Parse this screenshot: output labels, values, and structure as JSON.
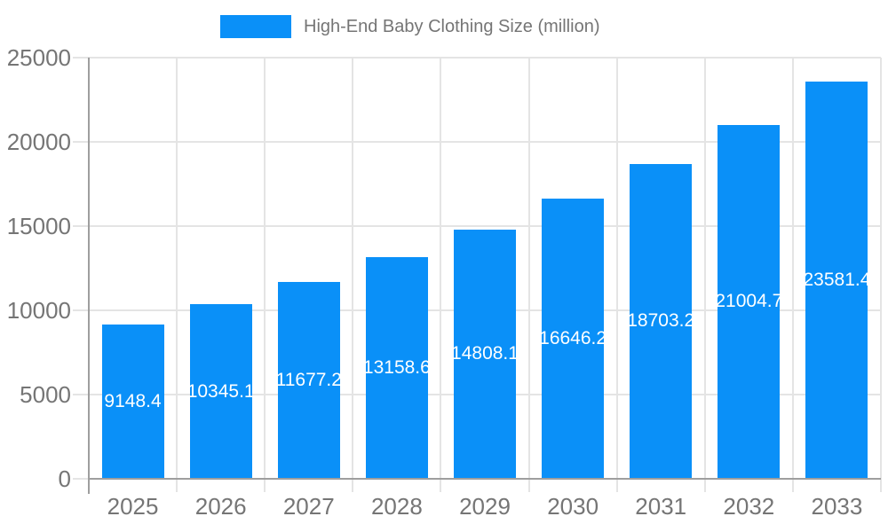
{
  "chart_data": {
    "type": "bar",
    "title": "High-End Baby Clothing Size (million)",
    "legend": {
      "label": "High-End Baby Clothing Size (million)",
      "position": "top"
    },
    "categories": [
      "2025",
      "2026",
      "2027",
      "2028",
      "2029",
      "2030",
      "2031",
      "2032",
      "2033"
    ],
    "values": [
      9148.4,
      10345.1,
      11677.2,
      13158.6,
      14808.1,
      16646.2,
      18703.2,
      21004.7,
      23581.4
    ],
    "xlabel": "",
    "ylabel": "",
    "ylim": [
      0,
      25000
    ],
    "y_ticks": [
      0,
      5000,
      10000,
      15000,
      20000,
      25000
    ],
    "grid": true,
    "value_labels_shown": true,
    "colors": {
      "bar": "#0A90F8",
      "bar_label": "#ffffff",
      "gridline": "#E4E4E4",
      "axis": "#9E9E9E",
      "tick_text": "#757575",
      "legend_text": "#757575",
      "background": "#ffffff"
    }
  }
}
